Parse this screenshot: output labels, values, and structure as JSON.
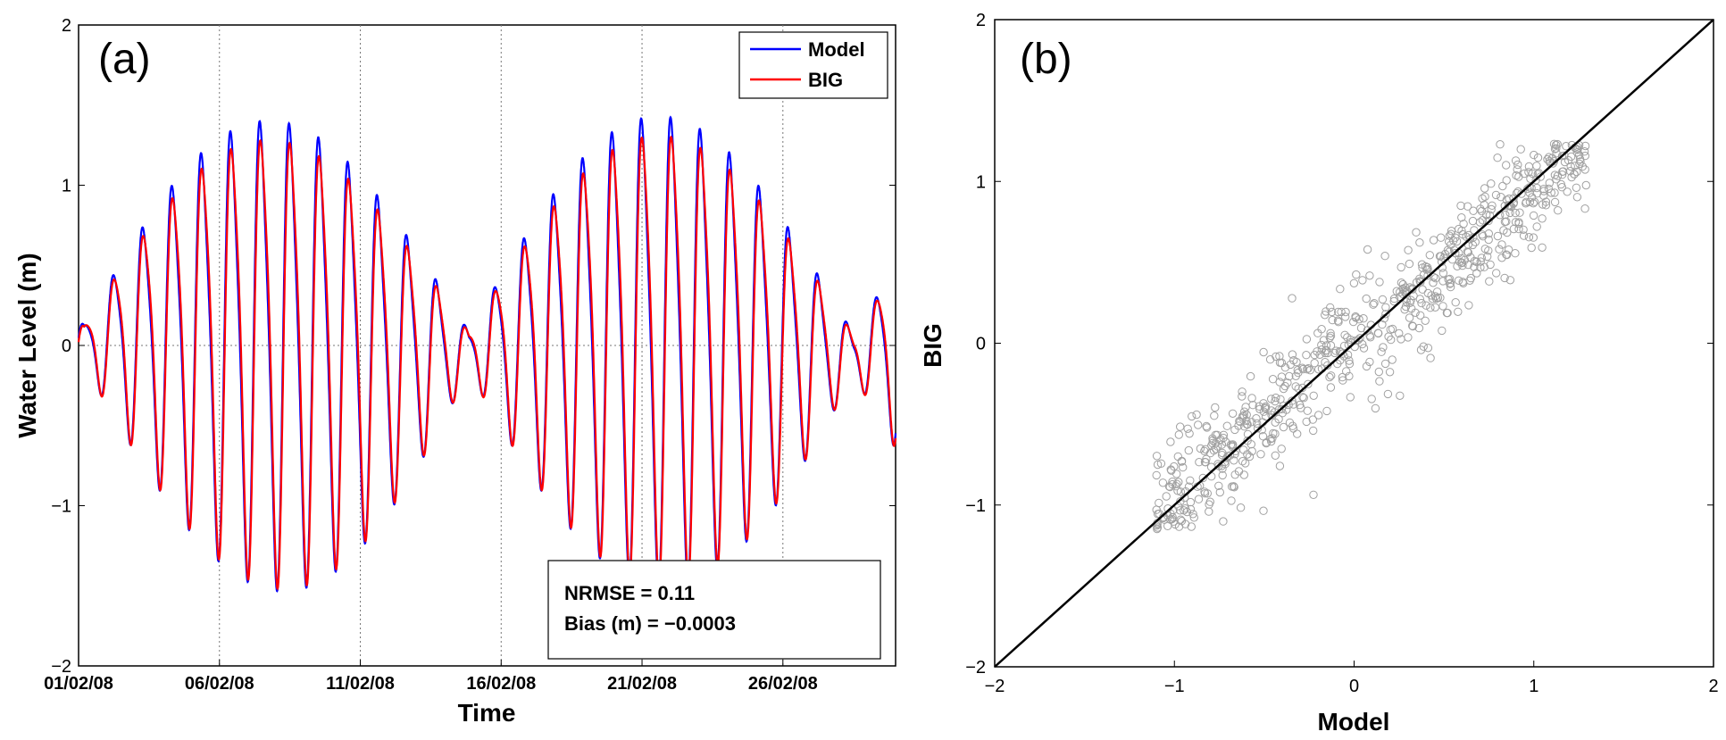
{
  "chart_data": [
    {
      "panel": "(a)",
      "type": "line",
      "xlabel": "Time",
      "ylabel": "Water Level (m)",
      "ylim": [
        -2,
        2
      ],
      "yticks": [
        "−2",
        "−1",
        "0",
        "1",
        "2"
      ],
      "xlim_days": [
        0,
        29
      ],
      "xtick_labels": [
        "01/02/08",
        "06/02/08",
        "11/02/08",
        "16/02/08",
        "21/02/08",
        "26/02/08"
      ],
      "xtick_days": [
        0,
        5,
        10,
        15,
        20,
        25
      ],
      "legend": {
        "position": "top-right",
        "entries": [
          "Model",
          "BIG"
        ]
      },
      "series": [
        {
          "name": "Model",
          "color": "#0000ff",
          "tidal_amplitude_peak_m": 1.25,
          "diurnal_period_hours": 25
        },
        {
          "name": "BIG",
          "color": "#ff0000",
          "tidal_amplitude_peak_m": 1.2,
          "diurnal_period_hours": 25
        }
      ],
      "annotation": {
        "line1": "NRMSE = 0.11",
        "line2": "Bias (m) = −0.0003",
        "position": "bottom-right"
      }
    },
    {
      "panel": "(b)",
      "type": "scatter",
      "xlabel": "Model",
      "ylabel": "BIG",
      "xlim": [
        -2,
        2
      ],
      "ylim": [
        -2,
        2
      ],
      "xticks": [
        "−2",
        "−1",
        "0",
        "1",
        "2"
      ],
      "yticks": [
        "−2",
        "−1",
        "0",
        "1",
        "2"
      ],
      "reference_line": "y = x",
      "point_count": 700,
      "point_range": [
        -1.1,
        1.3
      ],
      "marker": "open circle, grey"
    }
  ]
}
